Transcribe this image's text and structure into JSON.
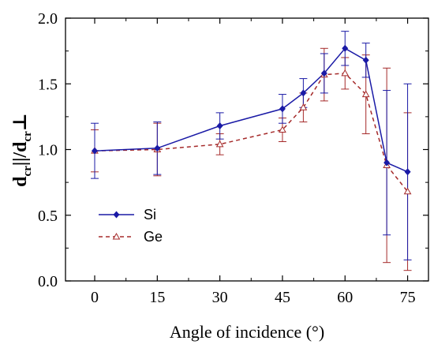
{
  "chart_data": {
    "type": "line",
    "xlabel": "Angle of incidence (°)",
    "ylabel": {
      "main1": "d",
      "sub1": "cr",
      "mid": "||/d",
      "sub2": "cr",
      "end": "⊥"
    },
    "xlim": [
      -7,
      80
    ],
    "ylim": [
      0,
      2.0
    ],
    "xticks": [
      0,
      15,
      30,
      45,
      60,
      75
    ],
    "xtick_labels": [
      "0",
      "15",
      "30",
      "45",
      "60",
      "75"
    ],
    "yticks": [
      0,
      0.5,
      1.0,
      1.5,
      2.0
    ],
    "ytick_labels": [
      "0.0",
      "0.5",
      "1.0",
      "1.5",
      "2.0"
    ],
    "grid": false,
    "legend_position": "bottom-left",
    "series": [
      {
        "name": "Si",
        "color": "#1a1aa6",
        "line_style": "solid",
        "marker": "filled-diamond",
        "x": [
          0,
          15,
          30,
          45,
          50,
          55,
          60,
          65,
          70,
          75
        ],
        "y": [
          0.99,
          1.01,
          1.18,
          1.31,
          1.43,
          1.58,
          1.77,
          1.68,
          0.9,
          0.83
        ],
        "err": [
          0.21,
          0.2,
          0.1,
          0.11,
          0.11,
          0.15,
          0.13,
          0.13,
          0.55,
          0.67
        ]
      },
      {
        "name": "Ge",
        "color": "#a52a2a",
        "line_style": "dashed",
        "marker": "open-triangle",
        "x": [
          0,
          15,
          30,
          45,
          50,
          55,
          60,
          65,
          70,
          75
        ],
        "y": [
          0.99,
          1.0,
          1.04,
          1.15,
          1.32,
          1.57,
          1.58,
          1.42,
          0.88,
          0.68
        ],
        "err": [
          0.16,
          0.2,
          0.08,
          0.09,
          0.11,
          0.2,
          0.12,
          0.3,
          0.74,
          0.6
        ]
      }
    ]
  }
}
